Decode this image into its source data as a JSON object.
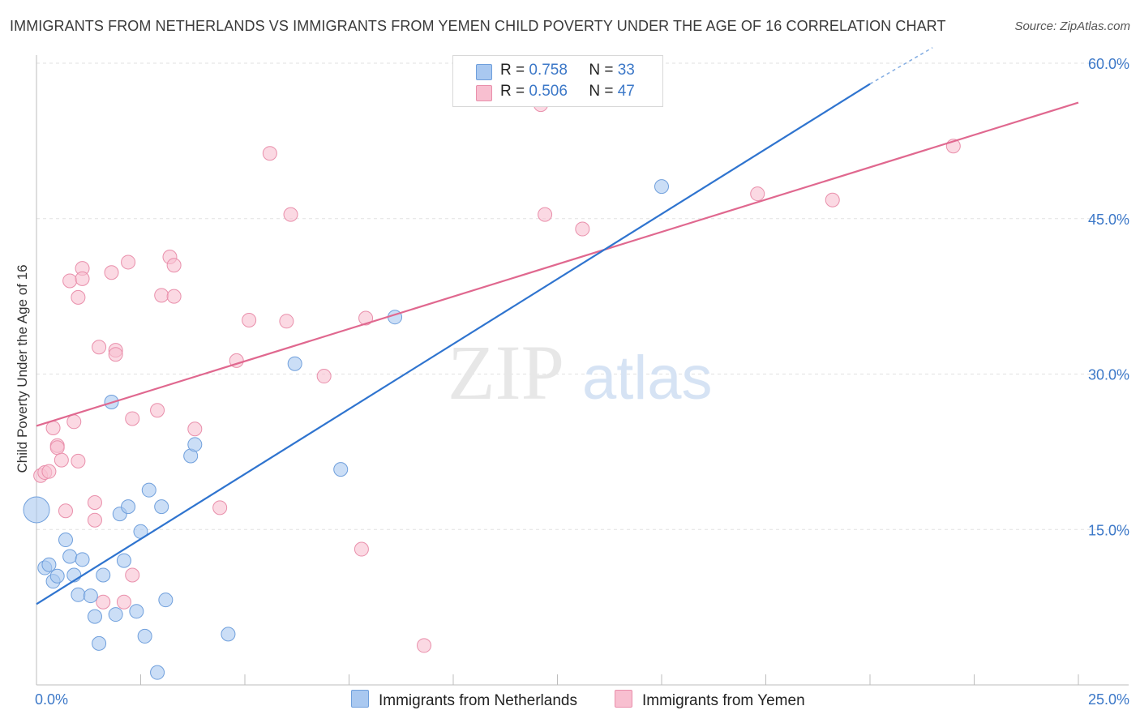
{
  "title": "IMMIGRANTS FROM NETHERLANDS VS IMMIGRANTS FROM YEMEN CHILD POVERTY UNDER THE AGE OF 16 CORRELATION CHART",
  "source": "Source: ZipAtlas.com",
  "watermark": {
    "zip": "ZIP",
    "atlas": "atlas"
  },
  "legend": {
    "r_label": "R =",
    "n_label": "N =",
    "netherlands": {
      "r": "0.758",
      "n": "33"
    },
    "yemen": {
      "r": "0.506",
      "n": "47"
    }
  },
  "colors": {
    "netherlands_fill": "#a9c8f0",
    "netherlands_stroke": "#6f9fdc",
    "netherlands_line": "#2f74cf",
    "yemen_fill": "#f8bfd0",
    "yemen_stroke": "#e98fab",
    "yemen_line": "#e0688f",
    "tick": "#3c78c8"
  },
  "chart_data": {
    "type": "scatter",
    "title": "IMMIGRANTS FROM NETHERLANDS VS IMMIGRANTS FROM YEMEN CHILD POVERTY UNDER THE AGE OF 16 CORRELATION CHART",
    "xlabel": "",
    "ylabel": "Child Poverty Under the Age of 16",
    "xlim": [
      0,
      25
    ],
    "ylim": [
      0,
      60
    ],
    "x_tick_labels": [
      "0.0%",
      "25.0%"
    ],
    "y_ticks": [
      15,
      30,
      45,
      60
    ],
    "y_tick_labels": [
      "15.0%",
      "30.0%",
      "45.0%",
      "60.0%"
    ],
    "grid": true,
    "legend_position": "top-center",
    "series": [
      {
        "name": "Immigrants from Netherlands",
        "points": [
          [
            0.0,
            16.9,
            3
          ],
          [
            0.2,
            11.3,
            1
          ],
          [
            0.3,
            11.6,
            1
          ],
          [
            0.4,
            10.0,
            1
          ],
          [
            0.5,
            10.5,
            1
          ],
          [
            0.7,
            14.0,
            1
          ],
          [
            0.8,
            12.4,
            1
          ],
          [
            0.9,
            10.6,
            1
          ],
          [
            1.0,
            8.7,
            1
          ],
          [
            1.1,
            12.1,
            1
          ],
          [
            1.3,
            8.6,
            1
          ],
          [
            1.4,
            6.6,
            1
          ],
          [
            1.5,
            4.0,
            1
          ],
          [
            1.6,
            10.6,
            1
          ],
          [
            1.8,
            27.3,
            1
          ],
          [
            1.9,
            6.8,
            1
          ],
          [
            2.0,
            16.5,
            1
          ],
          [
            2.1,
            12.0,
            1
          ],
          [
            2.2,
            17.2,
            1
          ],
          [
            2.4,
            7.1,
            1
          ],
          [
            2.5,
            14.8,
            1
          ],
          [
            2.6,
            4.7,
            1
          ],
          [
            2.7,
            18.8,
            1
          ],
          [
            2.9,
            1.2,
            1
          ],
          [
            3.0,
            17.2,
            1
          ],
          [
            3.1,
            8.2,
            1
          ],
          [
            3.7,
            22.1,
            1
          ],
          [
            3.8,
            23.2,
            1
          ],
          [
            4.6,
            4.9,
            1
          ],
          [
            6.2,
            31.0,
            1
          ],
          [
            7.3,
            20.8,
            1
          ],
          [
            8.6,
            35.5,
            1
          ],
          [
            15.0,
            48.1,
            1
          ]
        ],
        "trend": {
          "x": [
            0,
            20
          ],
          "y": [
            7.8,
            58.0
          ],
          "dashed_extension_to": [
            21.5,
            61.5
          ]
        }
      },
      {
        "name": "Immigrants from Yemen",
        "points": [
          [
            0.1,
            20.2,
            1
          ],
          [
            0.2,
            20.5,
            1
          ],
          [
            0.3,
            20.6,
            1
          ],
          [
            0.4,
            24.8,
            1
          ],
          [
            0.5,
            23.1,
            1
          ],
          [
            0.5,
            22.9,
            1
          ],
          [
            0.6,
            21.7,
            1
          ],
          [
            0.7,
            16.8,
            1
          ],
          [
            0.8,
            39.0,
            1
          ],
          [
            0.9,
            25.4,
            1
          ],
          [
            1.0,
            21.6,
            1
          ],
          [
            1.0,
            37.4,
            1
          ],
          [
            1.1,
            40.2,
            1
          ],
          [
            1.1,
            39.2,
            1
          ],
          [
            1.4,
            17.6,
            1
          ],
          [
            1.4,
            15.9,
            1
          ],
          [
            1.5,
            32.6,
            1
          ],
          [
            1.6,
            8.0,
            1
          ],
          [
            1.8,
            39.8,
            1
          ],
          [
            1.9,
            32.3,
            1
          ],
          [
            1.9,
            31.9,
            1
          ],
          [
            2.1,
            8.0,
            1
          ],
          [
            2.2,
            40.8,
            1
          ],
          [
            2.3,
            10.6,
            1
          ],
          [
            2.3,
            25.7,
            1
          ],
          [
            2.9,
            26.5,
            1
          ],
          [
            3.0,
            37.6,
            1
          ],
          [
            3.2,
            41.3,
            1
          ],
          [
            3.3,
            37.5,
            1
          ],
          [
            3.3,
            40.5,
            1
          ],
          [
            3.8,
            24.7,
            1
          ],
          [
            4.4,
            17.1,
            1
          ],
          [
            4.8,
            31.3,
            1
          ],
          [
            5.1,
            35.2,
            1
          ],
          [
            5.6,
            51.3,
            1
          ],
          [
            6.0,
            35.1,
            1
          ],
          [
            6.1,
            45.4,
            1
          ],
          [
            6.9,
            29.8,
            1
          ],
          [
            7.8,
            13.1,
            1
          ],
          [
            7.9,
            35.4,
            1
          ],
          [
            9.3,
            3.8,
            1
          ],
          [
            12.1,
            56.0,
            1
          ],
          [
            12.2,
            45.4,
            1
          ],
          [
            13.1,
            44.0,
            1
          ],
          [
            17.3,
            47.4,
            1
          ],
          [
            19.1,
            46.8,
            1
          ],
          [
            22.0,
            52.0,
            1
          ]
        ],
        "trend": {
          "x": [
            0,
            25
          ],
          "y": [
            25.0,
            56.2
          ]
        }
      }
    ]
  },
  "bottom_legend": [
    "Immigrants from Netherlands",
    "Immigrants from Yemen"
  ]
}
